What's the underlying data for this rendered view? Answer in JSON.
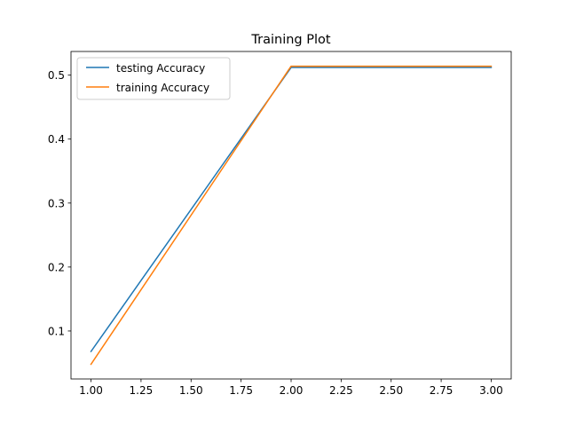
{
  "chart_data": {
    "type": "line",
    "title": "Training Plot",
    "xlabel": "",
    "ylabel": "",
    "x": [
      1.0,
      2.0,
      3.0
    ],
    "xlim": [
      0.9,
      3.1
    ],
    "ylim": [
      0.025,
      0.537
    ],
    "xticks": [
      1.0,
      1.25,
      1.5,
      1.75,
      2.0,
      2.25,
      2.5,
      2.75,
      3.0
    ],
    "xtick_labels": [
      "1.00",
      "1.25",
      "1.50",
      "1.75",
      "2.00",
      "2.25",
      "2.50",
      "2.75",
      "3.00"
    ],
    "yticks": [
      0.1,
      0.2,
      0.3,
      0.4,
      0.5
    ],
    "ytick_labels": [
      "0.1",
      "0.2",
      "0.3",
      "0.4",
      "0.5"
    ],
    "grid": false,
    "legend_position": "top-left",
    "series": [
      {
        "name": "testing Accuracy",
        "color": "#1f77b4",
        "values": [
          0.068,
          0.512,
          0.512
        ]
      },
      {
        "name": "training Accuracy",
        "color": "#ff7f0e",
        "values": [
          0.048,
          0.514,
          0.514
        ]
      }
    ]
  }
}
